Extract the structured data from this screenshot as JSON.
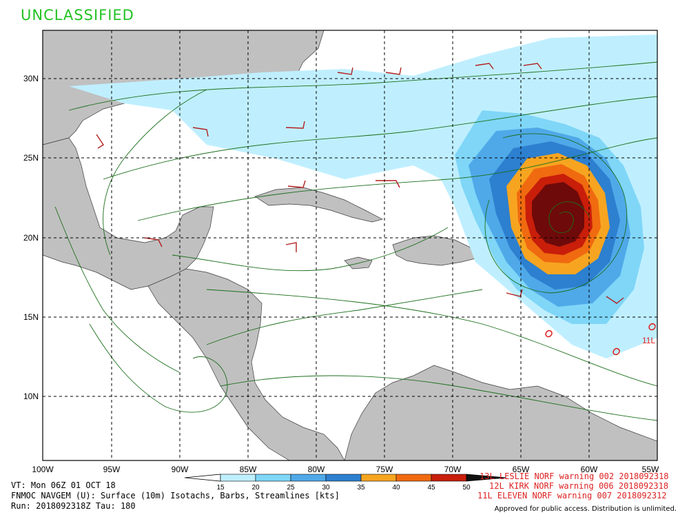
{
  "header": {
    "classification": "UNCLASSIFIED"
  },
  "map": {
    "lat_labels": [
      "30N",
      "25N",
      "20N",
      "15N",
      "10N"
    ],
    "lon_labels": [
      "100W",
      "95W",
      "90W",
      "85W",
      "80W",
      "75W",
      "70W",
      "65W",
      "60W",
      "55W"
    ],
    "ocean_color": "#ffffff",
    "land_color": "#c0c0c0",
    "streamline_color": "#1a6e1a",
    "barb_color": "#b41e1e"
  },
  "colorbar": {
    "ticks": [
      "15",
      "20",
      "25",
      "30",
      "35",
      "40",
      "45",
      "50"
    ],
    "colors": [
      "#bfefff",
      "#7fd6f7",
      "#4fa9e8",
      "#2d7fcf",
      "#f7a520",
      "#f06a10",
      "#c81e0a",
      "#6e0a0a"
    ]
  },
  "footer": {
    "line1": "VT: Mon 06Z 01 OCT 18",
    "line2": "FNMOC NAVGEM (U): Surface (10m) Isotachs, Barbs, Streamlines [kts]",
    "line3": "Run: 2018092318Z Tau: 180",
    "approved": "Approved for public access. Distribution is unlimited."
  },
  "storms": [
    "13L LESLIE NORF warning 002 2018092318",
    "12L KIRK NORF warning 006 2018092318",
    "11L ELEVEN NORF warning 007 2018092312"
  ],
  "map_labels": {
    "storm_tag": "11L"
  }
}
